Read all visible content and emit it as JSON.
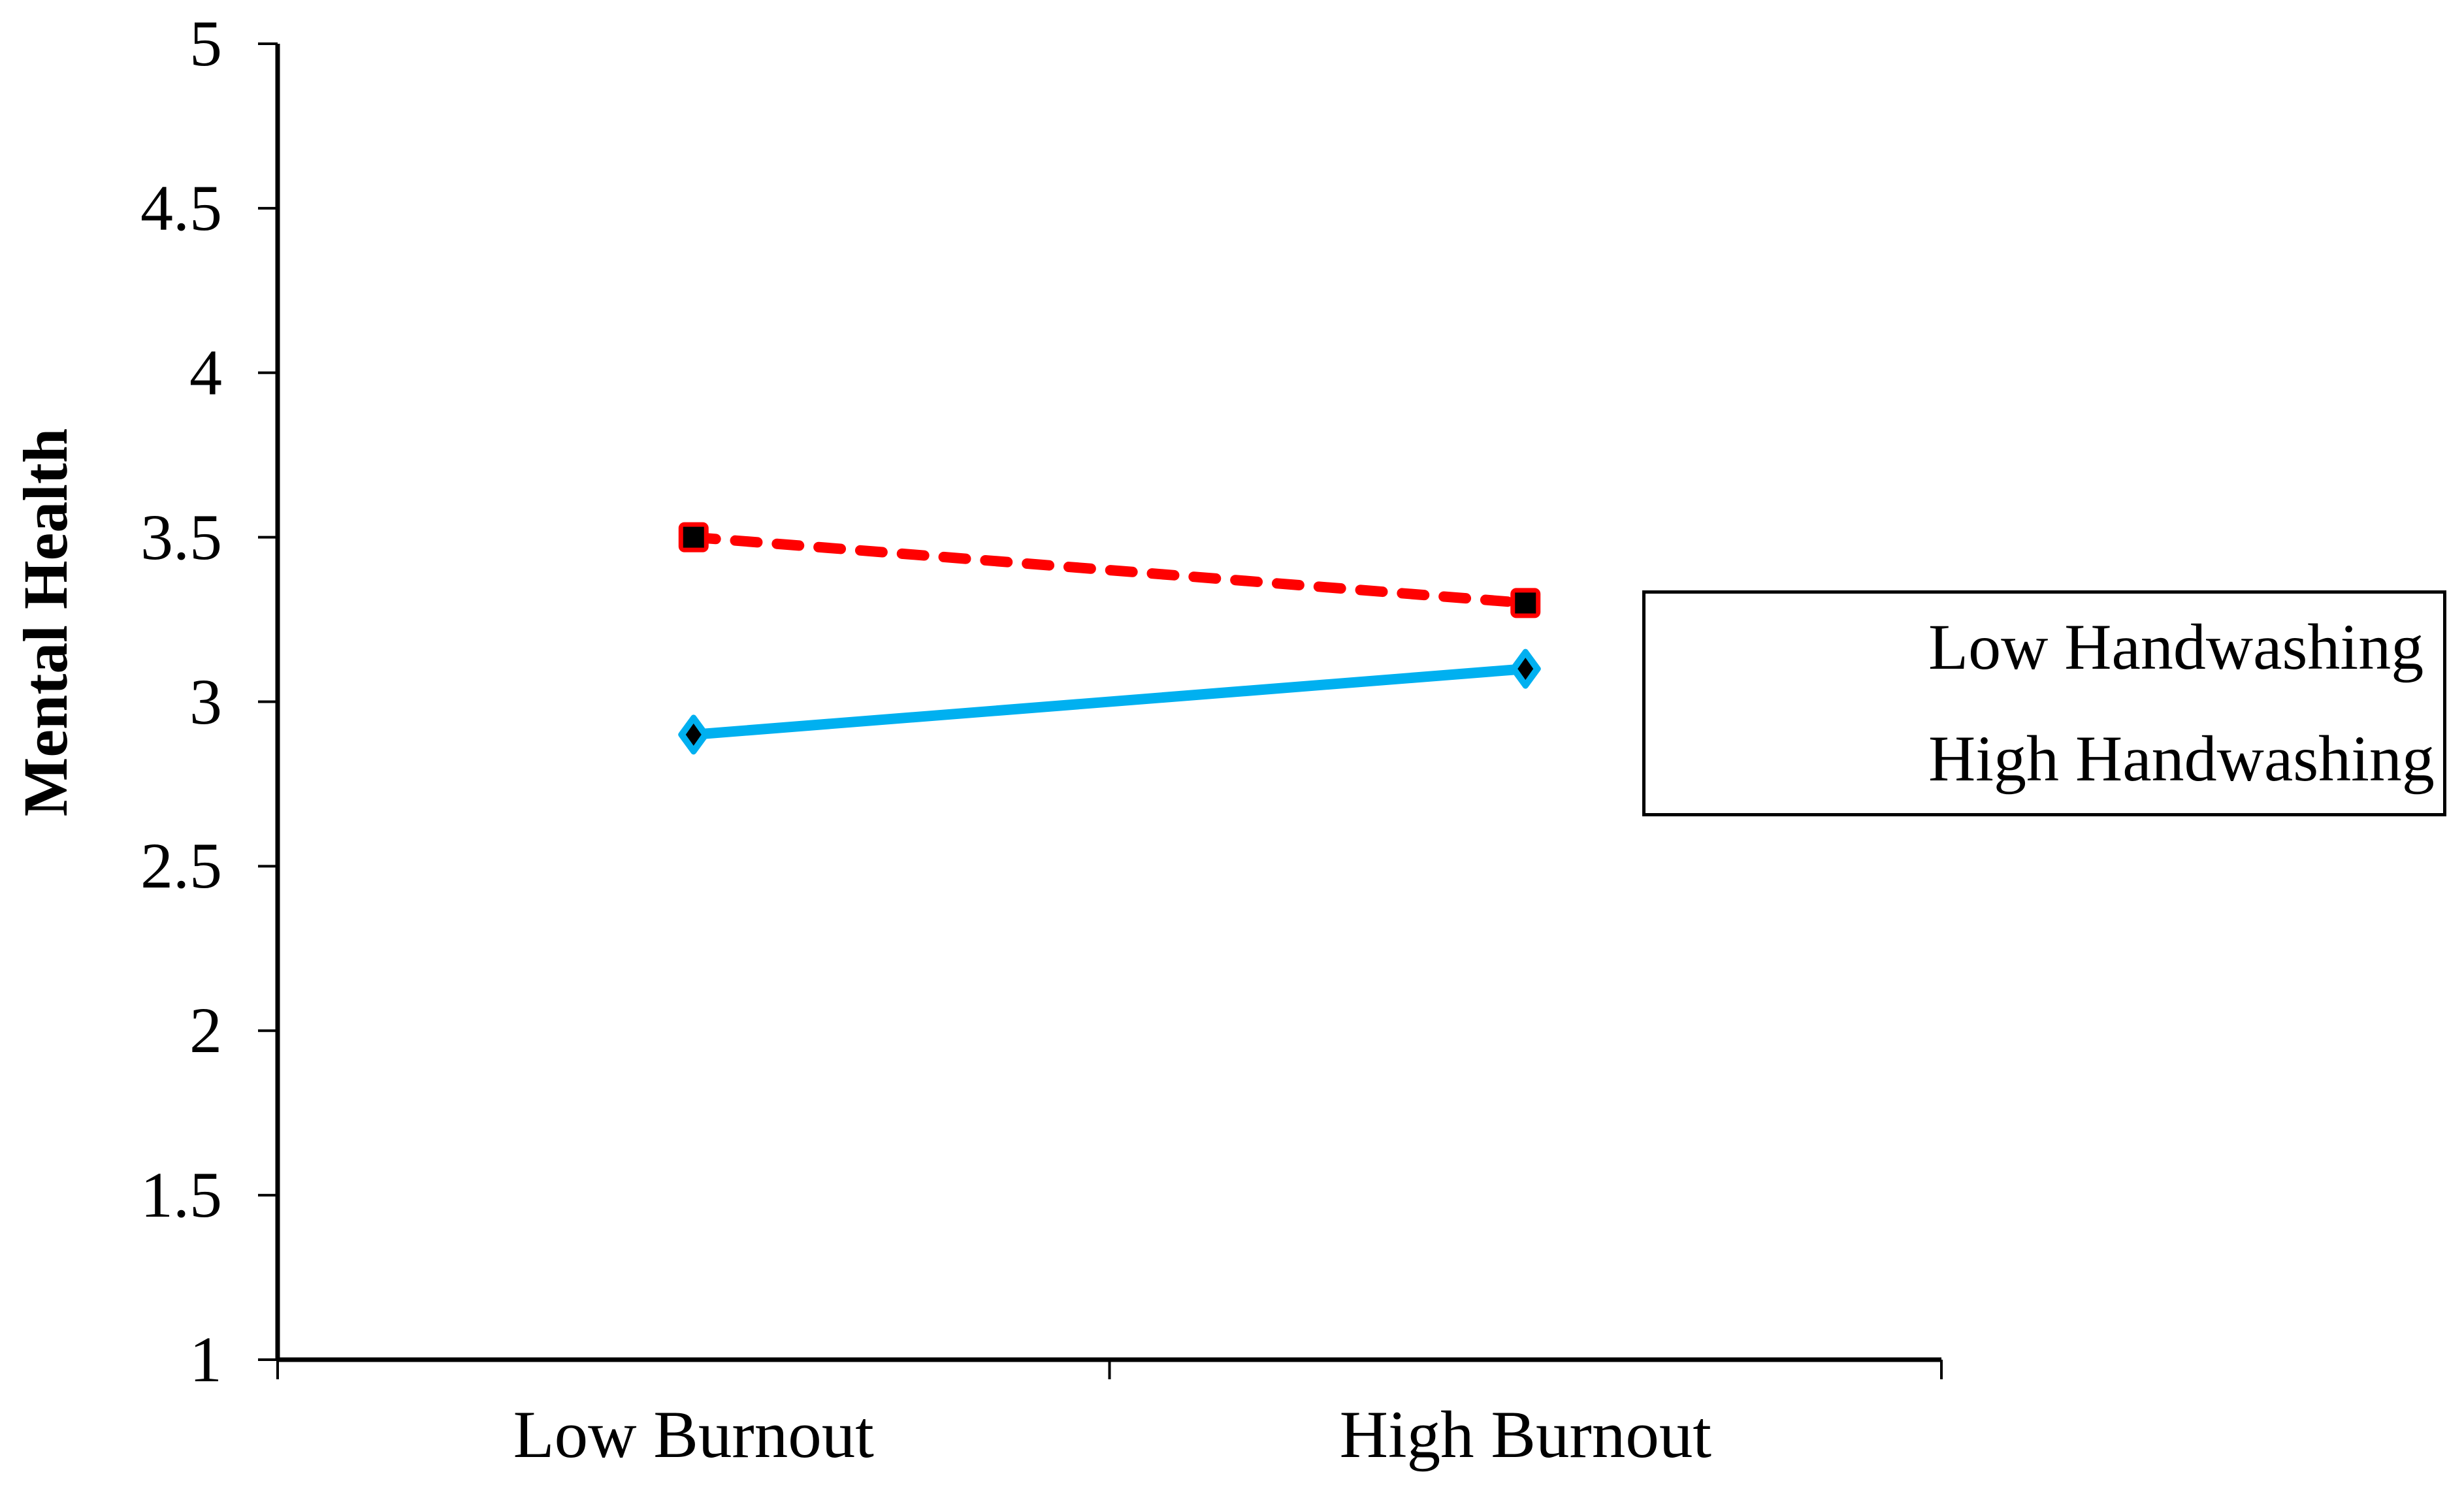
{
  "page": {
    "background_color": "#FFFFFF",
    "text_color": "#000000"
  },
  "chart_data": {
    "type": "line",
    "title": "",
    "xlabel": "",
    "ylabel": "Mental Health",
    "categories": [
      "Low Burnout",
      "High Burnout"
    ],
    "series": [
      {
        "name": "Low Handwashing",
        "values": [
          2.9,
          3.1
        ],
        "color": "#00B0F0",
        "line_style": "solid",
        "marker": "diamond",
        "marker_fill": "#000000"
      },
      {
        "name": "High Handwashing",
        "values": [
          3.5,
          3.3
        ],
        "color": "#FF0000",
        "line_style": "dashed",
        "marker": "square",
        "marker_fill": "#000000"
      }
    ],
    "ylim": [
      1,
      5
    ],
    "ytick_step": 0.5,
    "yticks": [
      {
        "value": 5,
        "label": "5"
      },
      {
        "value": 4.5,
        "label": "4.5"
      },
      {
        "value": 4,
        "label": "4"
      },
      {
        "value": 3.5,
        "label": "3.5"
      },
      {
        "value": 3,
        "label": "3"
      },
      {
        "value": 2.5,
        "label": "2.5"
      },
      {
        "value": 2,
        "label": "2"
      },
      {
        "value": 1.5,
        "label": "1.5"
      },
      {
        "value": 1,
        "label": "1"
      }
    ],
    "grid": false,
    "axis_color": "#000000",
    "legend": {
      "position": "right",
      "border_color": "#000000",
      "background": "#FFFFFF"
    }
  }
}
